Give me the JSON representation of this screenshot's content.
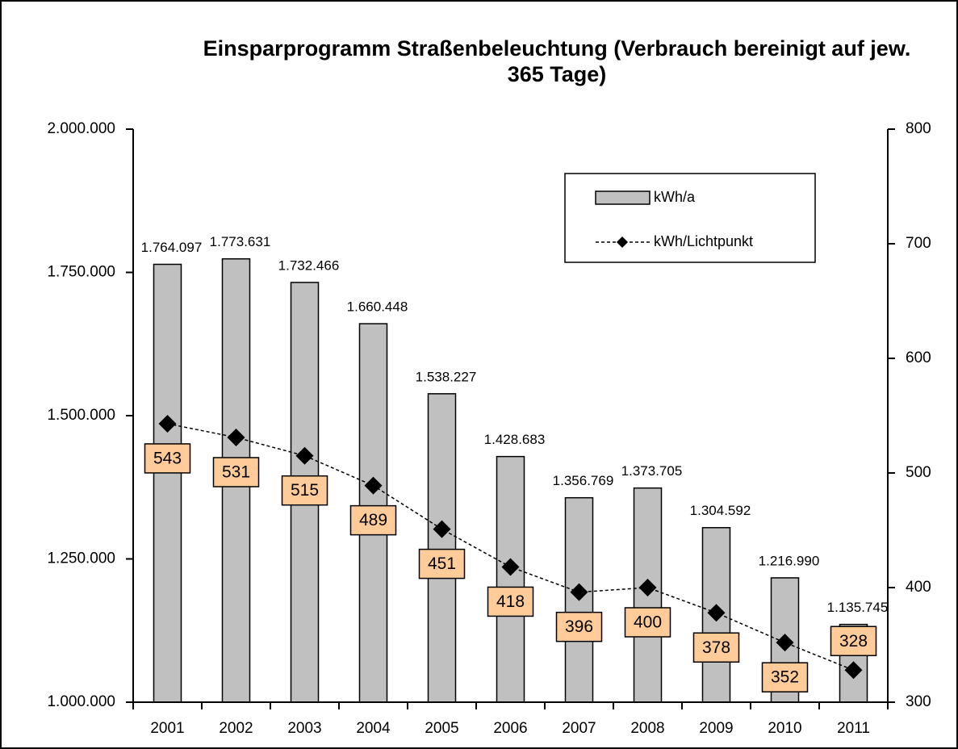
{
  "chart_data": {
    "type": "bar",
    "title": "Einsparprogramm Straßenbeleuchtung (Verbrauch bereinigt auf jew. 365 Tage)",
    "categories": [
      "2001",
      "2002",
      "2003",
      "2004",
      "2005",
      "2006",
      "2007",
      "2008",
      "2009",
      "2010",
      "2011"
    ],
    "series": [
      {
        "name": "kWh/a",
        "color": "#c0c0c0",
        "values": [
          1764097,
          1773631,
          1732466,
          1660448,
          1538227,
          1428683,
          1356769,
          1373705,
          1304592,
          1216990,
          1135745
        ],
        "value_labels": [
          "1.764.097",
          "1.773.631",
          "1.732.466",
          "1.660.448",
          "1.538.227",
          "1.428.683",
          "1.356.769",
          "1.373.705",
          "1.304.592",
          "1.216.990",
          "1.135.745"
        ]
      },
      {
        "name": "kWh/Lichtpunkt",
        "color": "#000000",
        "type": "line",
        "axis": "y2",
        "values": [
          543,
          531,
          515,
          489,
          451,
          418,
          396,
          400,
          378,
          352,
          328
        ]
      }
    ],
    "ylim": [
      1000000,
      2000000
    ],
    "yticks": [
      {
        "value": 1000000,
        "label": "1.000.000"
      },
      {
        "value": 1250000,
        "label": "1.250.000"
      },
      {
        "value": 1500000,
        "label": "1.500.000"
      },
      {
        "value": 1750000,
        "label": "1.750.000"
      },
      {
        "value": 2000000,
        "label": "2.000.000"
      }
    ],
    "y2lim": [
      300,
      800
    ],
    "y2ticks": [
      300,
      400,
      500,
      600,
      700,
      800
    ],
    "legend": "top-right"
  }
}
